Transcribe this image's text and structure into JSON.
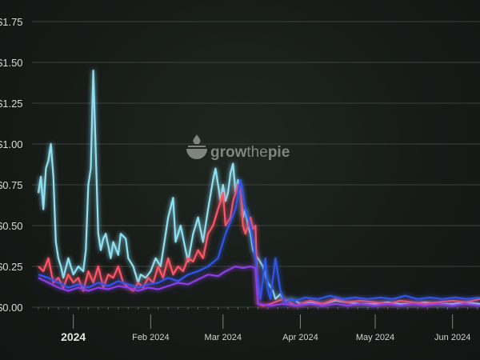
{
  "watermark": {
    "part1": "grow",
    "part2": "the",
    "part3": "pie"
  },
  "chart_data": {
    "type": "line",
    "ylim": [
      0,
      1.75
    ],
    "yticks": [
      {
        "value": 0,
        "label": "$0.00"
      },
      {
        "value": 0.25,
        "label": "$0.25"
      },
      {
        "value": 0.5,
        "label": "$0.50"
      },
      {
        "value": 0.75,
        "label": "$0.75"
      },
      {
        "value": 1.0,
        "label": "$1.00"
      },
      {
        "value": 1.25,
        "label": "$1.25"
      },
      {
        "value": 1.5,
        "label": "$1.50"
      },
      {
        "value": 1.75,
        "label": "$1.75"
      }
    ],
    "xlim": [
      "2023-12-18",
      "2024-06-12"
    ],
    "xticks": [
      {
        "date": "2024-01-01",
        "label": "2024",
        "major": true
      },
      {
        "date": "2024-02-01",
        "label": "Feb 2024",
        "major": false
      },
      {
        "date": "2024-03-01",
        "label": "Mar 2024",
        "major": false
      },
      {
        "date": "2024-04-01",
        "label": "Apr 2024",
        "major": false
      },
      {
        "date": "2024-05-01",
        "label": "May 2024",
        "major": false
      },
      {
        "date": "2024-06-01",
        "label": "Jun 2024",
        "major": false
      }
    ],
    "grid": true,
    "colors": {
      "series1": "#8fe0f2",
      "series2": "#fe5468",
      "series3": "#2d55e8",
      "series4": "#8b3ce8"
    },
    "series": [
      {
        "color": "#8fe0f2",
        "x": [
          "2023-12-18",
          "2023-12-19",
          "2023-12-20",
          "2023-12-21",
          "2023-12-22",
          "2023-12-23",
          "2023-12-24",
          "2023-12-25",
          "2023-12-26",
          "2023-12-27",
          "2023-12-28",
          "2023-12-30",
          "2024-01-01",
          "2024-01-03",
          "2024-01-05",
          "2024-01-06",
          "2024-01-07",
          "2024-01-08",
          "2024-01-09",
          "2024-01-11",
          "2024-01-12",
          "2024-01-13",
          "2024-01-14",
          "2024-01-16",
          "2024-01-17",
          "2024-01-19",
          "2024-01-20",
          "2024-01-22",
          "2024-01-23",
          "2024-01-25",
          "2024-01-27",
          "2024-01-28",
          "2024-01-30",
          "2024-02-01",
          "2024-02-03",
          "2024-02-05",
          "2024-02-07",
          "2024-02-08",
          "2024-02-10",
          "2024-02-11",
          "2024-02-13",
          "2024-02-15",
          "2024-02-16",
          "2024-02-18",
          "2024-02-20",
          "2024-02-22",
          "2024-02-24",
          "2024-02-26",
          "2024-02-27",
          "2024-02-29",
          "2024-03-01",
          "2024-03-02",
          "2024-03-03",
          "2024-03-04",
          "2024-03-05",
          "2024-03-06",
          "2024-03-07",
          "2024-03-08",
          "2024-03-09",
          "2024-03-10",
          "2024-03-11",
          "2024-03-12",
          "2024-03-13",
          "2024-03-15",
          "2024-03-17",
          "2024-03-19",
          "2024-03-21",
          "2024-03-22",
          "2024-03-24",
          "2024-03-26",
          "2024-03-28",
          "2024-03-30",
          "2024-04-01",
          "2024-04-05",
          "2024-04-10",
          "2024-04-15",
          "2024-04-20",
          "2024-04-25",
          "2024-05-01",
          "2024-05-06",
          "2024-05-11",
          "2024-05-16",
          "2024-05-21",
          "2024-05-26",
          "2024-06-01",
          "2024-06-06",
          "2024-06-12"
        ],
        "y": [
          0.7,
          0.8,
          0.6,
          0.85,
          0.9,
          1.0,
          0.8,
          0.4,
          0.3,
          0.25,
          0.18,
          0.3,
          0.2,
          0.25,
          0.22,
          0.35,
          0.75,
          0.85,
          1.45,
          0.45,
          0.35,
          0.42,
          0.45,
          0.3,
          0.4,
          0.32,
          0.45,
          0.42,
          0.3,
          0.25,
          0.15,
          0.2,
          0.18,
          0.22,
          0.3,
          0.25,
          0.45,
          0.55,
          0.67,
          0.4,
          0.5,
          0.35,
          0.28,
          0.45,
          0.55,
          0.4,
          0.6,
          0.78,
          0.85,
          0.65,
          0.75,
          0.65,
          0.7,
          0.82,
          0.88,
          0.7,
          0.78,
          0.72,
          0.55,
          0.6,
          0.5,
          0.45,
          0.35,
          0.3,
          0.25,
          0.15,
          0.1,
          0.05,
          0.08,
          0.03,
          0.05,
          0.04,
          0.02,
          0.03,
          0.02,
          0.04,
          0.03,
          0.02,
          0.02,
          0.03,
          0.02,
          0.02,
          0.03,
          0.02,
          0.02,
          0.03,
          0.02
        ]
      },
      {
        "color": "#fe5468",
        "x": [
          "2023-12-18",
          "2023-12-20",
          "2023-12-22",
          "2023-12-24",
          "2023-12-26",
          "2023-12-28",
          "2023-12-30",
          "2024-01-01",
          "2024-01-03",
          "2024-01-05",
          "2024-01-07",
          "2024-01-09",
          "2024-01-11",
          "2024-01-13",
          "2024-01-15",
          "2024-01-17",
          "2024-01-19",
          "2024-01-21",
          "2024-01-23",
          "2024-01-25",
          "2024-01-27",
          "2024-01-29",
          "2024-01-31",
          "2024-02-02",
          "2024-02-04",
          "2024-02-06",
          "2024-02-08",
          "2024-02-10",
          "2024-02-12",
          "2024-02-14",
          "2024-02-16",
          "2024-02-18",
          "2024-02-20",
          "2024-02-22",
          "2024-02-24",
          "2024-02-26",
          "2024-02-28",
          "2024-03-01",
          "2024-03-02",
          "2024-03-04",
          "2024-03-05",
          "2024-03-07",
          "2024-03-08",
          "2024-03-09",
          "2024-03-10",
          "2024-03-12",
          "2024-03-13",
          "2024-03-14",
          "2024-03-15",
          "2024-03-17",
          "2024-03-20",
          "2024-03-25",
          "2024-03-30",
          "2024-04-05",
          "2024-04-10",
          "2024-04-15",
          "2024-04-20",
          "2024-04-25",
          "2024-05-01",
          "2024-05-06",
          "2024-05-11",
          "2024-05-16",
          "2024-05-21",
          "2024-05-26",
          "2024-06-01",
          "2024-06-06",
          "2024-06-12"
        ],
        "y": [
          0.25,
          0.22,
          0.3,
          0.15,
          0.18,
          0.12,
          0.2,
          0.15,
          0.18,
          0.1,
          0.22,
          0.15,
          0.25,
          0.12,
          0.2,
          0.18,
          0.25,
          0.15,
          0.12,
          0.1,
          0.15,
          0.12,
          0.18,
          0.15,
          0.25,
          0.18,
          0.3,
          0.2,
          0.25,
          0.22,
          0.3,
          0.28,
          0.35,
          0.3,
          0.45,
          0.5,
          0.6,
          0.7,
          0.5,
          0.55,
          0.65,
          0.75,
          0.72,
          0.5,
          0.45,
          0.55,
          0.48,
          0.5,
          0.02,
          0.01,
          0.02,
          0.05,
          0.01,
          0.04,
          0.02,
          0.05,
          0.03,
          0.04,
          0.03,
          0.02,
          0.04,
          0.03,
          0.02,
          0.03,
          0.04,
          0.03,
          0.05
        ]
      },
      {
        "color": "#2d55e8",
        "x": [
          "2023-12-18",
          "2023-12-22",
          "2023-12-26",
          "2023-12-30",
          "2024-01-03",
          "2024-01-07",
          "2024-01-11",
          "2024-01-15",
          "2024-01-19",
          "2024-01-23",
          "2024-01-27",
          "2024-01-31",
          "2024-02-04",
          "2024-02-08",
          "2024-02-12",
          "2024-02-16",
          "2024-02-20",
          "2024-02-24",
          "2024-02-28",
          "2024-03-02",
          "2024-03-06",
          "2024-03-08",
          "2024-03-10",
          "2024-03-12",
          "2024-03-14",
          "2024-03-15",
          "2024-03-16",
          "2024-03-18",
          "2024-03-19",
          "2024-03-20",
          "2024-03-22",
          "2024-03-24",
          "2024-03-26",
          "2024-03-28",
          "2024-03-30",
          "2024-04-03",
          "2024-04-08",
          "2024-04-13",
          "2024-04-18",
          "2024-04-23",
          "2024-04-28",
          "2024-05-03",
          "2024-05-08",
          "2024-05-13",
          "2024-05-18",
          "2024-05-23",
          "2024-05-28",
          "2024-06-02",
          "2024-06-07",
          "2024-06-12"
        ],
        "y": [
          0.2,
          0.18,
          0.15,
          0.12,
          0.14,
          0.12,
          0.15,
          0.13,
          0.16,
          0.14,
          0.12,
          0.14,
          0.15,
          0.18,
          0.16,
          0.2,
          0.22,
          0.25,
          0.3,
          0.45,
          0.6,
          0.78,
          0.6,
          0.5,
          0.3,
          0.15,
          0.05,
          0.3,
          0.1,
          0.05,
          0.3,
          0.1,
          0.02,
          0.05,
          0.04,
          0.06,
          0.05,
          0.07,
          0.05,
          0.06,
          0.05,
          0.06,
          0.05,
          0.07,
          0.05,
          0.06,
          0.05,
          0.06,
          0.05,
          0.06
        ]
      },
      {
        "color": "#8b3ce8",
        "x": [
          "2023-12-18",
          "2023-12-22",
          "2023-12-26",
          "2023-12-30",
          "2024-01-03",
          "2024-01-07",
          "2024-01-11",
          "2024-01-15",
          "2024-01-19",
          "2024-01-23",
          "2024-01-27",
          "2024-01-31",
          "2024-02-04",
          "2024-02-08",
          "2024-02-12",
          "2024-02-16",
          "2024-02-20",
          "2024-02-24",
          "2024-02-28",
          "2024-03-02",
          "2024-03-06",
          "2024-03-09",
          "2024-03-12",
          "2024-03-14",
          "2024-03-15",
          "2024-03-20",
          "2024-03-25",
          "2024-03-30",
          "2024-04-05",
          "2024-04-10",
          "2024-04-15",
          "2024-04-20",
          "2024-04-25",
          "2024-05-01",
          "2024-05-06",
          "2024-05-11",
          "2024-05-16",
          "2024-05-21",
          "2024-05-26",
          "2024-06-01",
          "2024-06-06",
          "2024-06-12"
        ],
        "y": [
          0.18,
          0.15,
          0.12,
          0.1,
          0.12,
          0.1,
          0.12,
          0.11,
          0.13,
          0.12,
          0.1,
          0.12,
          0.11,
          0.13,
          0.15,
          0.14,
          0.17,
          0.2,
          0.19,
          0.22,
          0.25,
          0.24,
          0.25,
          0.24,
          0.02,
          0.01,
          0.02,
          0.01,
          0.02,
          0.01,
          0.02,
          0.01,
          0.02,
          0.01,
          0.02,
          0.01,
          0.02,
          0.01,
          0.02,
          0.01,
          0.02,
          0.01
        ]
      }
    ]
  }
}
